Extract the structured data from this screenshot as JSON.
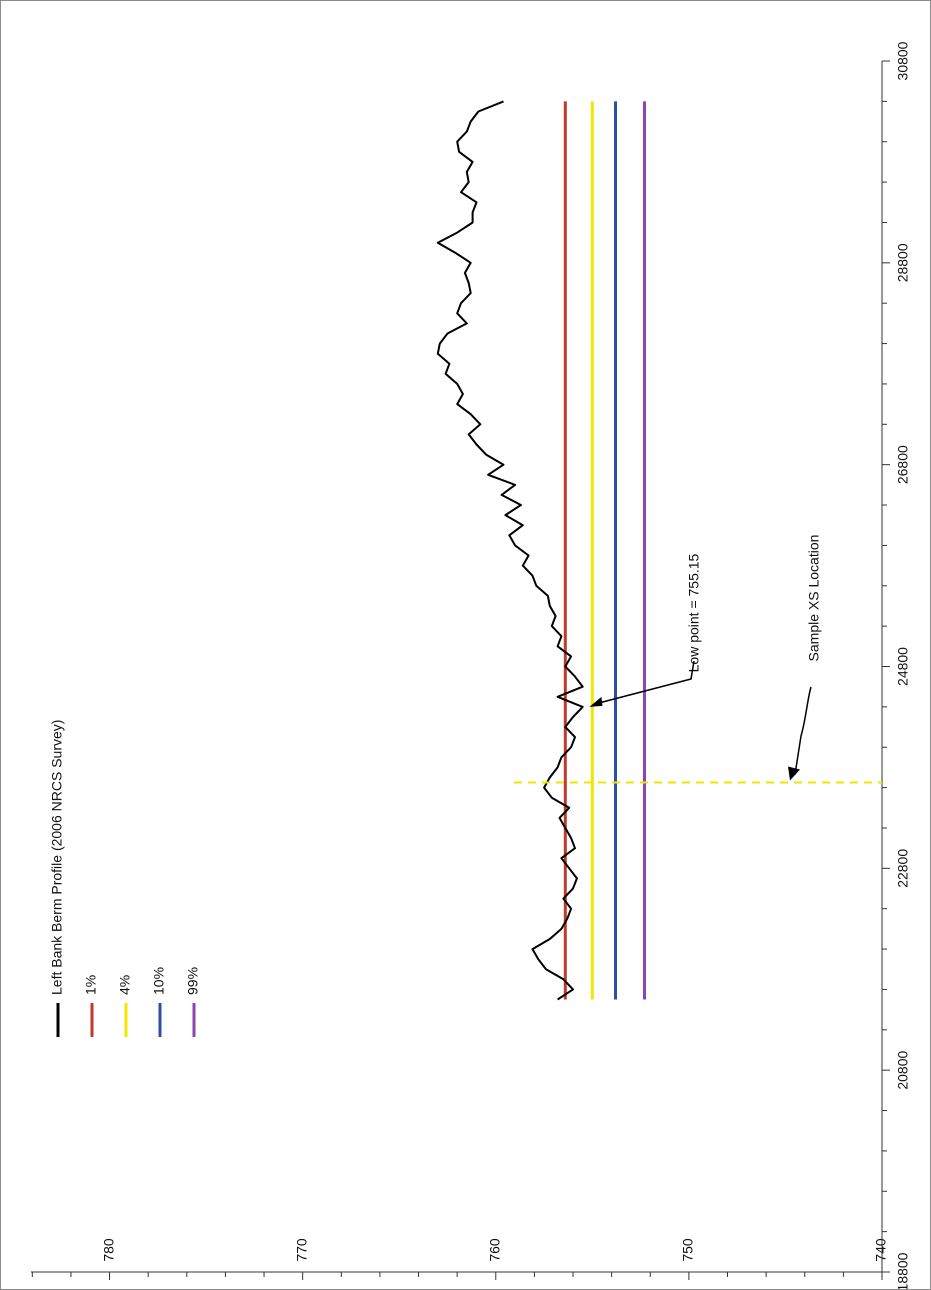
{
  "chart_data": {
    "type": "line",
    "title": "",
    "xlabel": "",
    "ylabel": "",
    "orientation": "rotated-90",
    "x_axis": {
      "range": [
        18800,
        30800
      ],
      "ticks": [
        "18800",
        "20800",
        "22800",
        "24800",
        "26800",
        "28800",
        "30800"
      ]
    },
    "y_axis": {
      "range": [
        740,
        785
      ],
      "ticks": [
        "740",
        "750",
        "760",
        "770",
        "780"
      ]
    },
    "legend": {
      "position": "top-left",
      "items": [
        {
          "label": "Left Bank Berm Profile (2006 NRCS Survey)",
          "color": "#000000"
        },
        {
          "label": "1%",
          "color": "#c0392b"
        },
        {
          "label": "4%",
          "color": "#f2e600"
        },
        {
          "label": "10%",
          "color": "#2e4fa3"
        },
        {
          "label": "99%",
          "color": "#8e44ad"
        }
      ]
    },
    "series": [
      {
        "name": "1%",
        "color": "#c0392b",
        "x": [
          21500,
          30400
        ],
        "y": [
          756.4,
          756.4
        ]
      },
      {
        "name": "4%",
        "color": "#f2e600",
        "x": [
          21500,
          30400
        ],
        "y": [
          755.0,
          755.0
        ]
      },
      {
        "name": "10%",
        "color": "#2e4fa3",
        "x": [
          21500,
          30400
        ],
        "y": [
          753.8,
          753.8
        ]
      },
      {
        "name": "99%",
        "color": "#8e44ad",
        "x": [
          21500,
          30400
        ],
        "y": [
          752.3,
          752.3
        ]
      },
      {
        "name": "Left Bank Berm Profile (2006 NRCS Survey)",
        "color": "#000000",
        "x": [
          21500,
          21600,
          21700,
          21800,
          21900,
          22000,
          22100,
          22200,
          22300,
          22400,
          22500,
          22600,
          22700,
          22800,
          22900,
          23000,
          23100,
          23200,
          23300,
          23400,
          23500,
          23600,
          23700,
          23800,
          23900,
          24000,
          24100,
          24200,
          24300,
          24400,
          24500,
          24600,
          24700,
          24800,
          24900,
          25000,
          25100,
          25200,
          25300,
          25400,
          25500,
          25600,
          25700,
          25800,
          25900,
          26000,
          26100,
          26200,
          26300,
          26400,
          26500,
          26600,
          26700,
          26800,
          26900,
          27000,
          27100,
          27200,
          27300,
          27400,
          27500,
          27600,
          27700,
          27800,
          27900,
          28000,
          28100,
          28200,
          28300,
          28400,
          28500,
          28600,
          28700,
          28800,
          28900,
          29000,
          29100,
          29200,
          29300,
          29400,
          29500,
          29600,
          29700,
          29800,
          29900,
          30000,
          30100,
          30200,
          30300,
          30400
        ],
        "y": [
          756.8,
          756.0,
          756.5,
          757.4,
          757.8,
          758.1,
          757.2,
          756.6,
          756.3,
          756.1,
          756.5,
          756.0,
          755.8,
          756.2,
          756.6,
          755.9,
          756.1,
          756.4,
          756.7,
          756.2,
          757.1,
          757.5,
          757.2,
          756.8,
          756.6,
          756.1,
          755.9,
          756.4,
          756.0,
          755.5,
          756.8,
          755.5,
          755.9,
          756.4,
          756.1,
          756.8,
          756.6,
          757.1,
          756.9,
          757.2,
          757.3,
          757.9,
          758.1,
          758.6,
          758.3,
          759.0,
          759.3,
          758.6,
          759.5,
          758.7,
          759.7,
          759.0,
          760.4,
          759.6,
          760.5,
          761.0,
          761.4,
          760.8,
          761.3,
          762.0,
          761.7,
          762.0,
          762.6,
          762.4,
          763.0,
          762.9,
          762.5,
          761.5,
          762.0,
          761.8,
          761.3,
          761.4,
          761.6,
          761.3,
          762.1,
          763.0,
          762.0,
          761.2,
          761.2,
          761.0,
          761.8,
          761.4,
          761.5,
          761.2,
          761.9,
          762.0,
          761.5,
          761.3,
          760.9,
          759.6
        ]
      }
    ],
    "annotations": [
      {
        "text": "Low point = 755.15",
        "target_x": 24400,
        "target_y": 755.15
      },
      {
        "text": "Sample XS Location",
        "x": 23650,
        "style": "dashed vertical",
        "color": "#f2e600"
      }
    ]
  }
}
